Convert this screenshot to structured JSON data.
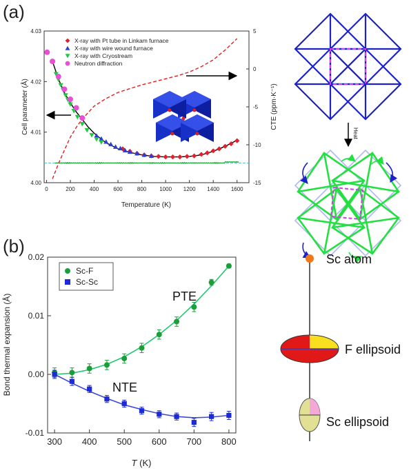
{
  "panels": {
    "a_label": "(a)",
    "b_label": "(b)"
  },
  "chart_data": [
    {
      "type": "scatter",
      "panel": "a",
      "xlabel": "Temperature (K)",
      "ylabel": "Cell parameter (Å)",
      "y2label": "CTE (ppm·K⁻¹)",
      "xlim": [
        -20,
        1700
      ],
      "ylim": [
        4.0,
        4.03
      ],
      "y2lim": [
        -15,
        5
      ],
      "x_ticks": [
        0,
        200,
        400,
        600,
        800,
        1000,
        1200,
        1400,
        1600
      ],
      "y_ticks": [
        4.0,
        4.01,
        4.02,
        4.03
      ],
      "y_tick_labels": [
        "4.00",
        "4.01",
        "4.02",
        "4.03"
      ],
      "y2_ticks": [
        5,
        0,
        -5,
        -10,
        -15
      ],
      "y2_tick_labels": [
        "5",
        "0",
        "-5",
        "-10",
        "-15"
      ],
      "legend_position": "top-center",
      "series": [
        {
          "name": "X-ray with Pt tube in Linkam furnace",
          "marker": "diamond",
          "color": "#e0202a",
          "x": [
            640,
            700,
            760,
            820,
            880,
            940,
            1000,
            1060,
            1120,
            1180,
            1240,
            1300,
            1350,
            1400,
            1450,
            1500,
            1550,
            1600
          ],
          "y": [
            4.0067,
            4.0062,
            4.0058,
            4.0055,
            4.0053,
            4.0052,
            4.0051,
            4.0051,
            4.0051,
            4.0052,
            4.0053,
            4.0056,
            4.0059,
            4.0063,
            4.0067,
            4.0072,
            4.0077,
            4.0083
          ]
        },
        {
          "name": "X-ray with wire wound furnace",
          "marker": "triangle-up",
          "color": "#2a3fd6",
          "x": [
            420,
            460,
            500,
            540,
            580,
            620,
            660,
            700,
            760,
            820,
            880
          ],
          "y": [
            4.0093,
            4.0087,
            4.0081,
            4.0076,
            4.0071,
            4.0068,
            4.0064,
            4.0061,
            4.0058,
            4.0055,
            4.0053
          ]
        },
        {
          "name": "X-ray with Cryostream",
          "marker": "triangle-down",
          "color": "#1ec840",
          "x": [
            80,
            100,
            120,
            140,
            160,
            180,
            200,
            230,
            260,
            300,
            340,
            380,
            420,
            460
          ],
          "y": [
            4.0215,
            4.0204,
            4.0193,
            4.0183,
            4.0173,
            4.0164,
            4.0155,
            4.0142,
            4.013,
            4.0116,
            4.0104,
            4.0094,
            4.0086,
            4.008
          ]
        },
        {
          "name": "Neutron diffraction",
          "marker": "circle",
          "color": "#e84ed6",
          "x": [
            5,
            50,
            100,
            150,
            200,
            250,
            300
          ],
          "y": [
            4.0258,
            4.024,
            4.021,
            4.0185,
            4.0165,
            4.0148,
            4.0128
          ]
        }
      ],
      "fit_curve": {
        "x": [
          50,
          100,
          150,
          200,
          250,
          300,
          350,
          400,
          450,
          500,
          600,
          700,
          800,
          900,
          1000,
          1100,
          1200,
          1300,
          1400,
          1500,
          1600
        ],
        "y": [
          4.024,
          4.0205,
          4.0178,
          4.0158,
          4.014,
          4.0125,
          4.011,
          4.0098,
          4.0088,
          4.0079,
          4.0067,
          4.006,
          4.0055,
          4.0052,
          4.0051,
          4.0051,
          4.0052,
          4.0055,
          4.0062,
          4.0072,
          4.0084
        ]
      },
      "cte_dashed_curve": {
        "x": [
          50,
          100,
          150,
          200,
          250,
          300,
          400,
          500,
          600,
          700,
          800,
          900,
          1000,
          1100,
          1200,
          1300,
          1400,
          1500,
          1600
        ],
        "y2": [
          -14.5,
          -12.5,
          -10.7,
          -9.0,
          -7.7,
          -6.6,
          -4.9,
          -3.9,
          -3.1,
          -2.6,
          -2.1,
          -1.7,
          -1.3,
          -0.9,
          -0.4,
          0.3,
          1.2,
          2.5,
          4.0
        ]
      },
      "baseline_level": 4.0039,
      "colors": {
        "fit": "#000000",
        "cte": "#e02020",
        "noise": "#1aa832",
        "baseline": "#55b8c8"
      }
    },
    {
      "type": "scatter",
      "panel": "b",
      "xlabel_italic": "T",
      "xlabel_unit": " (K)",
      "ylabel": "Bond thermal expansion (Å)",
      "xlim": [
        280,
        820
      ],
      "ylim": [
        -0.01,
        0.02
      ],
      "x_ticks": [
        300,
        400,
        500,
        600,
        700,
        800
      ],
      "y_ticks": [
        -0.01,
        0.0,
        0.01,
        0.02
      ],
      "y_tick_labels": [
        "-0.01",
        "0.00",
        "0.01",
        "0.02"
      ],
      "legend_position": "top-left",
      "annotations": [
        "PTE",
        "NTE"
      ],
      "series": [
        {
          "name": "Sc-F",
          "marker": "circle",
          "color": "#1a9e3a",
          "x": [
            300,
            350,
            400,
            450,
            500,
            550,
            600,
            650,
            700,
            750,
            800
          ],
          "y": [
            0.0003,
            0.0003,
            0.001,
            0.0016,
            0.0027,
            0.0045,
            0.0068,
            0.009,
            0.0115,
            0.0157,
            0.0185
          ],
          "err": [
            0.0008,
            0.0008,
            0.0008,
            0.0008,
            0.0008,
            0.0008,
            0.0008,
            0.0008,
            0.0008,
            0.0005,
            0.0003
          ]
        },
        {
          "name": "Sc-Sc",
          "marker": "square",
          "color": "#1c2bd4",
          "x": [
            300,
            350,
            400,
            450,
            500,
            550,
            600,
            650,
            700,
            750,
            800
          ],
          "y": [
            0.0,
            -0.0012,
            -0.0025,
            -0.0042,
            -0.005,
            -0.0062,
            -0.0068,
            -0.0072,
            -0.0082,
            -0.0072,
            -0.007
          ],
          "err": [
            0.0007,
            0.0007,
            0.0006,
            0.0006,
            0.0006,
            0.0006,
            0.0006,
            0.0006,
            0.0007,
            0.0007,
            0.0007
          ]
        }
      ],
      "fit_sc_f": {
        "x": [
          300,
          350,
          400,
          450,
          500,
          550,
          600,
          650,
          700,
          750,
          800
        ],
        "y": [
          0.0,
          0.0002,
          0.0008,
          0.0017,
          0.003,
          0.0047,
          0.0068,
          0.0092,
          0.012,
          0.0151,
          0.0185
        ]
      },
      "fit_sc_sc": {
        "x": [
          300,
          350,
          400,
          450,
          500,
          550,
          600,
          650,
          700,
          750,
          800
        ],
        "y": [
          0.0,
          -0.0015,
          -0.0029,
          -0.0041,
          -0.0052,
          -0.006,
          -0.0067,
          -0.0072,
          -0.0074,
          -0.0073,
          -0.007
        ]
      }
    }
  ],
  "diagram_b": {
    "labels": [
      "Sc atom",
      "F ellipsoid",
      "Sc ellipsoid"
    ],
    "colors": {
      "sc_atom": "#f07818",
      "f_red": "#e01818",
      "f_yellow": "#f8e020",
      "sc_pink": "#f4a8d8",
      "sc_olive": "#e2e094"
    }
  },
  "diagram_a": {
    "heat_label": "Heat",
    "colors": {
      "frame": "#1c22c8",
      "dash": "#d040e0",
      "green": "#22e040",
      "rot": "#1c22c8"
    }
  }
}
